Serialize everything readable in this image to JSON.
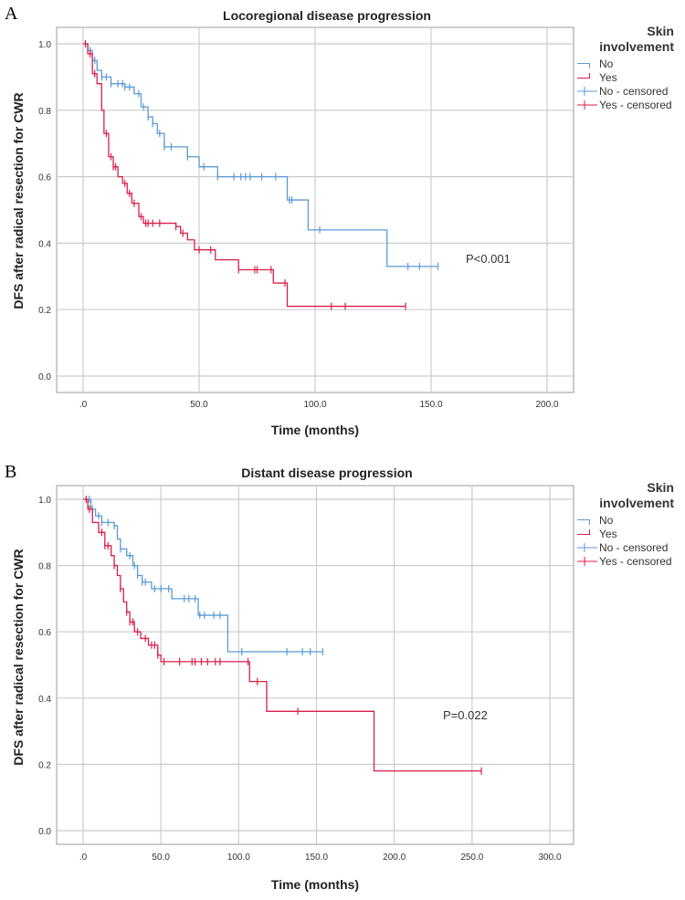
{
  "chart_data": [
    {
      "panel": "A",
      "type": "line",
      "subtype": "kaplan-meier step",
      "title": "Locoregional disease progression",
      "xlabel": "Time (months)",
      "ylabel": "DFS after radical resection for CWR",
      "xlim": [
        0,
        200
      ],
      "ylim": [
        0,
        1
      ],
      "xticks": [
        0,
        50,
        100,
        150,
        200
      ],
      "xtick_labels": [
        ".0",
        "50.0",
        "100.0",
        "150.0",
        "200.0"
      ],
      "yticks": [
        0,
        0.2,
        0.4,
        0.6,
        0.8,
        1.0
      ],
      "ytick_labels": [
        "0.0",
        "0.2",
        "0.4",
        "0.6",
        "0.8",
        "1.0"
      ],
      "grid": true,
      "annotation": "P<0.001",
      "legend": {
        "title_line1": "Skin",
        "title_line2": "involvement",
        "entries": [
          "No",
          "Yes",
          "No - censored",
          "Yes - censored"
        ],
        "placement": "right"
      },
      "series": [
        {
          "name": "No",
          "color": "#5b9bd5",
          "steps": [
            [
              0,
              1
            ],
            [
              2,
              0.98
            ],
            [
              4,
              0.95
            ],
            [
              6,
              0.92
            ],
            [
              8,
              0.9
            ],
            [
              12,
              0.88
            ],
            [
              18,
              0.87
            ],
            [
              22,
              0.85
            ],
            [
              25,
              0.81
            ],
            [
              28,
              0.78
            ],
            [
              30,
              0.76
            ],
            [
              32,
              0.73
            ],
            [
              35,
              0.69
            ],
            [
              45,
              0.66
            ],
            [
              50,
              0.63
            ],
            [
              58,
              0.6
            ],
            [
              88,
              0.53
            ],
            [
              97,
              0.44
            ],
            [
              131,
              0.33
            ]
          ],
          "end": 153,
          "censored": [
            3,
            5,
            8,
            10,
            12,
            15,
            17,
            18,
            20,
            24,
            26,
            28,
            30,
            33,
            35,
            38,
            45,
            52,
            58,
            65,
            68,
            70,
            72,
            77,
            83,
            89,
            90,
            102,
            140,
            145,
            153
          ]
        },
        {
          "name": "Yes",
          "color": "#d81f4a",
          "steps": [
            [
              0,
              1
            ],
            [
              2,
              0.97
            ],
            [
              4,
              0.91
            ],
            [
              6,
              0.88
            ],
            [
              8,
              0.8
            ],
            [
              9,
              0.73
            ],
            [
              11,
              0.66
            ],
            [
              13,
              0.63
            ],
            [
              15,
              0.6
            ],
            [
              17,
              0.58
            ],
            [
              19,
              0.55
            ],
            [
              21,
              0.52
            ],
            [
              24,
              0.48
            ],
            [
              26,
              0.46
            ],
            [
              40,
              0.45
            ],
            [
              42,
              0.43
            ],
            [
              45,
              0.41
            ],
            [
              48,
              0.38
            ],
            [
              57,
              0.35
            ],
            [
              67,
              0.32
            ],
            [
              82,
              0.28
            ],
            [
              88,
              0.21
            ]
          ],
          "end": 139,
          "censored": [
            1,
            3,
            5,
            10,
            12,
            13,
            14,
            18,
            20,
            22,
            25,
            27,
            28,
            30,
            33,
            40,
            43,
            50,
            55,
            67,
            74,
            75,
            81,
            87,
            107,
            113,
            139
          ]
        }
      ]
    },
    {
      "panel": "B",
      "type": "line",
      "subtype": "kaplan-meier step",
      "title": "Distant disease progression",
      "xlabel": "Time (months)",
      "ylabel": "DFS after radical resection for CWR",
      "xlim": [
        0,
        300
      ],
      "ylim": [
        0,
        1
      ],
      "xticks": [
        0,
        50,
        100,
        150,
        200,
        250,
        300
      ],
      "xtick_labels": [
        ".0",
        "50.0",
        "100.0",
        "150.0",
        "200.0",
        "250.0",
        "300.0"
      ],
      "yticks": [
        0,
        0.2,
        0.4,
        0.6,
        0.8,
        1.0
      ],
      "ytick_labels": [
        "0.0",
        "0.2",
        "0.4",
        "0.6",
        "0.8",
        "1.0"
      ],
      "grid": true,
      "annotation": "P=0.022",
      "legend": {
        "title_line1": "Skin",
        "title_line2": "involvement",
        "entries": [
          "No",
          "Yes",
          "No - censored",
          "Yes - censored"
        ],
        "placement": "right"
      },
      "series": [
        {
          "name": "No",
          "color": "#5b9bd5",
          "steps": [
            [
              0,
              1
            ],
            [
              5,
              0.97
            ],
            [
              8,
              0.95
            ],
            [
              12,
              0.93
            ],
            [
              20,
              0.92
            ],
            [
              22,
              0.88
            ],
            [
              24,
              0.85
            ],
            [
              28,
              0.83
            ],
            [
              32,
              0.8
            ],
            [
              35,
              0.77
            ],
            [
              38,
              0.75
            ],
            [
              44,
              0.73
            ],
            [
              57,
              0.7
            ],
            [
              74,
              0.65
            ],
            [
              93,
              0.54
            ]
          ],
          "end": 154,
          "censored": [
            4,
            6,
            10,
            12,
            16,
            20,
            24,
            30,
            33,
            35,
            38,
            40,
            46,
            50,
            55,
            65,
            68,
            72,
            75,
            78,
            84,
            88,
            102,
            131,
            141,
            146,
            154
          ]
        },
        {
          "name": "Yes",
          "color": "#d81f4a",
          "steps": [
            [
              0,
              1
            ],
            [
              3,
              0.97
            ],
            [
              6,
              0.93
            ],
            [
              10,
              0.9
            ],
            [
              14,
              0.86
            ],
            [
              18,
              0.83
            ],
            [
              20,
              0.8
            ],
            [
              22,
              0.77
            ],
            [
              24,
              0.73
            ],
            [
              26,
              0.69
            ],
            [
              28,
              0.66
            ],
            [
              30,
              0.63
            ],
            [
              33,
              0.6
            ],
            [
              37,
              0.58
            ],
            [
              42,
              0.56
            ],
            [
              48,
              0.53
            ],
            [
              50,
              0.51
            ],
            [
              107,
              0.45
            ],
            [
              118,
              0.36
            ],
            [
              187,
              0.18
            ]
          ],
          "end": 256,
          "censored": [
            2,
            4,
            12,
            14,
            16,
            20,
            24,
            28,
            30,
            32,
            35,
            40,
            44,
            46,
            48,
            52,
            62,
            70,
            72,
            76,
            80,
            85,
            88,
            106,
            112,
            138,
            256
          ]
        }
      ]
    }
  ]
}
